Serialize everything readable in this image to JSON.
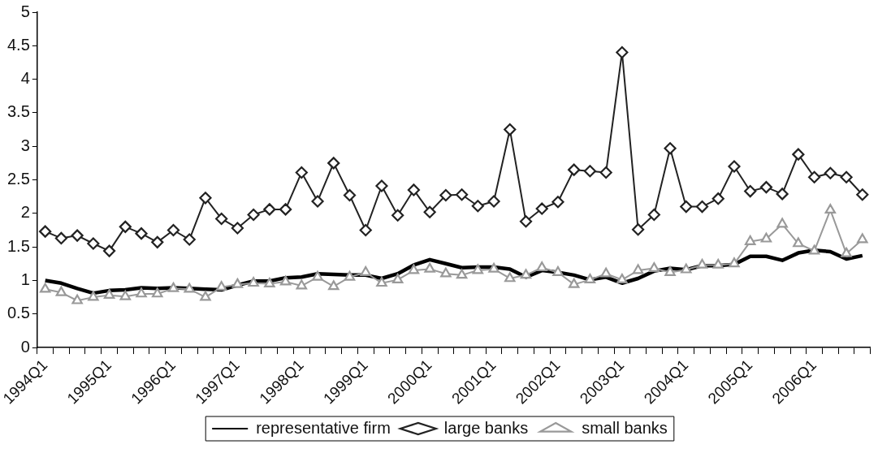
{
  "chart_data": {
    "type": "line",
    "categories": [
      "1994Q1",
      null,
      null,
      null,
      "1995Q1",
      null,
      null,
      null,
      "1996Q1",
      null,
      null,
      null,
      "1997Q1",
      null,
      null,
      null,
      "1998Q1",
      null,
      null,
      null,
      "1999Q1",
      null,
      null,
      null,
      "2000Q1",
      null,
      null,
      null,
      "2001Q1",
      null,
      null,
      null,
      "2002Q1",
      null,
      null,
      null,
      "2003Q1",
      null,
      null,
      null,
      "2004Q1",
      null,
      null,
      null,
      "2005Q1",
      null,
      null,
      null,
      "2006Q1",
      null,
      null,
      null
    ],
    "series": [
      {
        "name": "representative firm",
        "color": "#000000",
        "marker": "none",
        "values": [
          1.0,
          0.96,
          0.88,
          0.81,
          0.85,
          0.86,
          0.89,
          0.88,
          0.89,
          0.88,
          0.87,
          0.86,
          0.93,
          0.99,
          0.99,
          1.04,
          1.05,
          1.1,
          1.09,
          1.08,
          1.08,
          1.03,
          1.1,
          1.23,
          1.31,
          1.25,
          1.19,
          1.2,
          1.2,
          1.17,
          1.05,
          1.15,
          1.12,
          1.08,
          1.01,
          1.05,
          0.96,
          1.03,
          1.14,
          1.18,
          1.16,
          1.22,
          1.22,
          1.24,
          1.36,
          1.36,
          1.3,
          1.41,
          1.45,
          1.43,
          1.32,
          1.37
        ]
      },
      {
        "name": "large banks",
        "color": "#222222",
        "marker": "diamond",
        "values": [
          1.73,
          1.63,
          1.67,
          1.55,
          1.44,
          1.8,
          1.7,
          1.57,
          1.75,
          1.61,
          2.23,
          1.92,
          1.78,
          1.98,
          2.06,
          2.06,
          2.61,
          2.18,
          2.75,
          2.27,
          1.75,
          2.41,
          1.97,
          2.35,
          2.02,
          2.27,
          2.28,
          2.11,
          2.18,
          3.25,
          1.88,
          2.07,
          2.17,
          2.65,
          2.63,
          2.61,
          4.4,
          1.76,
          1.98,
          2.97,
          2.1,
          2.1,
          2.22,
          2.7,
          2.33,
          2.39,
          2.29,
          2.88,
          2.54,
          2.6,
          2.54,
          2.28
        ]
      },
      {
        "name": "small banks",
        "color": "#999999",
        "marker": "triangle",
        "values": [
          0.87,
          0.82,
          0.7,
          0.75,
          0.78,
          0.76,
          0.8,
          0.8,
          0.88,
          0.87,
          0.75,
          0.9,
          0.94,
          0.96,
          0.95,
          0.98,
          0.92,
          1.05,
          0.91,
          1.05,
          1.12,
          0.96,
          1.01,
          1.15,
          1.17,
          1.1,
          1.08,
          1.15,
          1.17,
          1.03,
          1.08,
          1.19,
          1.12,
          0.94,
          1.01,
          1.1,
          1.01,
          1.15,
          1.18,
          1.12,
          1.16,
          1.23,
          1.23,
          1.25,
          1.58,
          1.62,
          1.84,
          1.55,
          1.44,
          2.05,
          1.4,
          1.61
        ]
      }
    ],
    "ylim": [
      0,
      5
    ],
    "yticks": [
      0,
      0.5,
      1,
      1.5,
      2,
      2.5,
      3,
      3.5,
      4,
      4.5,
      5
    ],
    "grid": false,
    "legend": "bottom"
  }
}
